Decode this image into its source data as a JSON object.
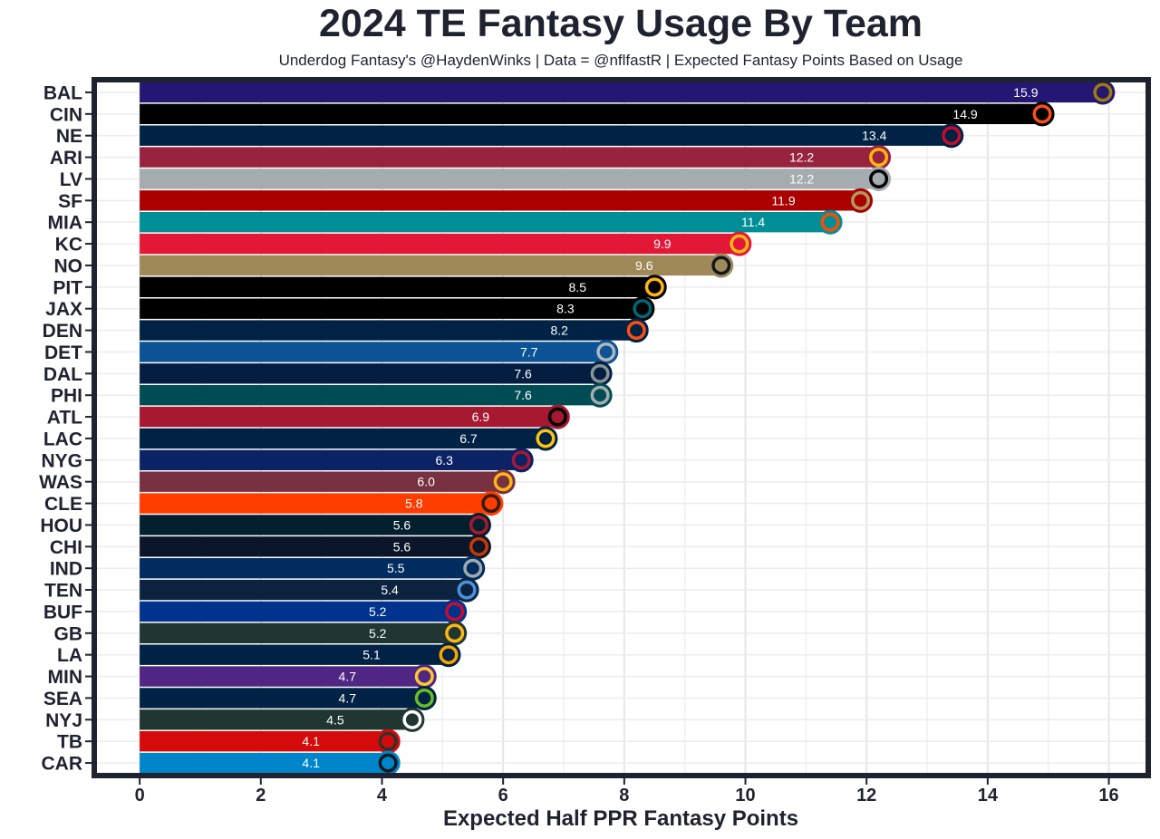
{
  "chart_data": {
    "type": "bar",
    "orientation": "horizontal",
    "title": "2024 TE Fantasy Usage By Team",
    "subtitle": "Underdog Fantasy's @HaydenWinks | Data = @nflfastR | Expected Fantasy Points Based on Usage",
    "xlabel": "Expected Half PPR Fantasy Points",
    "xlim": [
      -0.75,
      16.65
    ],
    "xticks": [
      0,
      2,
      4,
      6,
      8,
      10,
      12,
      14,
      16
    ],
    "grid": true,
    "legend": "none",
    "bars": [
      {
        "team": "BAL",
        "value": 15.9,
        "label": "15.9",
        "color": "#241773",
        "accent": "#9E7C0C"
      },
      {
        "team": "CIN",
        "value": 14.9,
        "label": "14.9",
        "color": "#000000",
        "accent": "#FB4F14"
      },
      {
        "team": "NE",
        "value": 13.4,
        "label": "13.4",
        "color": "#002244",
        "accent": "#C60C30"
      },
      {
        "team": "ARI",
        "value": 12.2,
        "label": "12.2",
        "color": "#97233F",
        "accent": "#FFB612"
      },
      {
        "team": "LV",
        "value": 12.2,
        "label": "12.2",
        "color": "#A5ACAF",
        "accent": "#000000"
      },
      {
        "team": "SF",
        "value": 11.9,
        "label": "11.9",
        "color": "#AA0000",
        "accent": "#B3995D"
      },
      {
        "team": "MIA",
        "value": 11.4,
        "label": "11.4",
        "color": "#008E97",
        "accent": "#FC4C02"
      },
      {
        "team": "KC",
        "value": 9.9,
        "label": "9.9",
        "color": "#E31837",
        "accent": "#FFB81C"
      },
      {
        "team": "NO",
        "value": 9.6,
        "label": "9.6",
        "color": "#9F8958",
        "accent": "#101820"
      },
      {
        "team": "PIT",
        "value": 8.5,
        "label": "8.5",
        "color": "#000000",
        "accent": "#FFB612"
      },
      {
        "team": "JAX",
        "value": 8.3,
        "label": "8.3",
        "color": "#000000",
        "accent": "#006778"
      },
      {
        "team": "DEN",
        "value": 8.2,
        "label": "8.2",
        "color": "#002244",
        "accent": "#FB4F14"
      },
      {
        "team": "DET",
        "value": 7.7,
        "label": "7.7",
        "color": "#0B5394",
        "accent": "#B0B7BC"
      },
      {
        "team": "DAL",
        "value": 7.6,
        "label": "7.6",
        "color": "#041E42",
        "accent": "#869397"
      },
      {
        "team": "PHI",
        "value": 7.6,
        "label": "7.6",
        "color": "#004C54",
        "accent": "#A5ACAF"
      },
      {
        "team": "ATL",
        "value": 6.9,
        "label": "6.9",
        "color": "#A71930",
        "accent": "#000000"
      },
      {
        "team": "LAC",
        "value": 6.7,
        "label": "6.7",
        "color": "#002244",
        "accent": "#FFC20E"
      },
      {
        "team": "NYG",
        "value": 6.3,
        "label": "6.3",
        "color": "#0B2265",
        "accent": "#A71930"
      },
      {
        "team": "WAS",
        "value": 6.0,
        "label": "6.0",
        "color": "#773141",
        "accent": "#FFB612"
      },
      {
        "team": "CLE",
        "value": 5.8,
        "label": "5.8",
        "color": "#FF3C00",
        "accent": "#311D00"
      },
      {
        "team": "HOU",
        "value": 5.6,
        "label": "5.6",
        "color": "#03202F",
        "accent": "#A71930"
      },
      {
        "team": "CHI",
        "value": 5.6,
        "label": "5.6",
        "color": "#0B162A",
        "accent": "#C83803"
      },
      {
        "team": "IND",
        "value": 5.5,
        "label": "5.5",
        "color": "#002C5F",
        "accent": "#A2AAAD"
      },
      {
        "team": "TEN",
        "value": 5.4,
        "label": "5.4",
        "color": "#0C2340",
        "accent": "#4B92DB"
      },
      {
        "team": "BUF",
        "value": 5.2,
        "label": "5.2",
        "color": "#00338D",
        "accent": "#C60C30"
      },
      {
        "team": "GB",
        "value": 5.2,
        "label": "5.2",
        "color": "#203731",
        "accent": "#FFB612"
      },
      {
        "team": "LA",
        "value": 5.1,
        "label": "5.1",
        "color": "#002244",
        "accent": "#FFA300"
      },
      {
        "team": "MIN",
        "value": 4.7,
        "label": "4.7",
        "color": "#4F2683",
        "accent": "#FFC62F"
      },
      {
        "team": "SEA",
        "value": 4.7,
        "label": "4.7",
        "color": "#002244",
        "accent": "#69BE28"
      },
      {
        "team": "NYJ",
        "value": 4.5,
        "label": "4.5",
        "color": "#203731",
        "accent": "#FFFFFF"
      },
      {
        "team": "TB",
        "value": 4.1,
        "label": "4.1",
        "color": "#D50A0A",
        "accent": "#34302B"
      },
      {
        "team": "CAR",
        "value": 4.1,
        "label": "4.1",
        "color": "#0085CA",
        "accent": "#101820"
      }
    ]
  }
}
